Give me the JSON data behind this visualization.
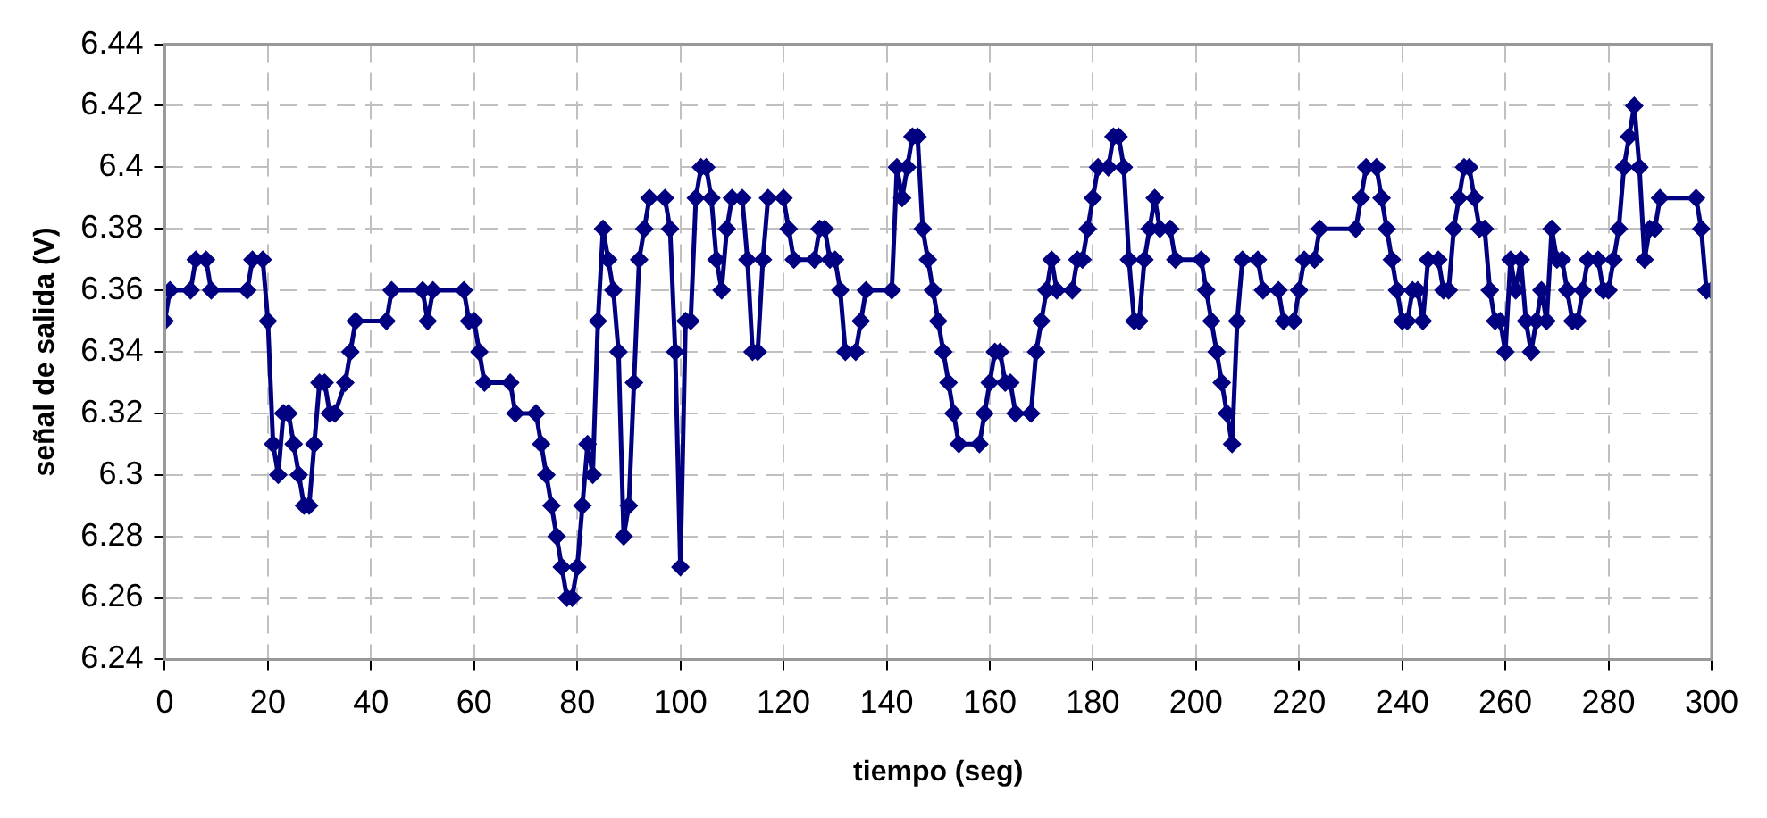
{
  "chart_data": {
    "type": "line",
    "xlabel": "tiempo (seg)",
    "ylabel": "señal de salida (V)",
    "xlim": [
      0,
      300
    ],
    "xticks": [
      0,
      20,
      40,
      60,
      80,
      100,
      120,
      140,
      160,
      180,
      200,
      220,
      240,
      260,
      280,
      300
    ],
    "ylim": [
      6.24,
      6.44
    ],
    "yticks": [
      6.24,
      6.26,
      6.28,
      6.3,
      6.32,
      6.34,
      6.36,
      6.38,
      6.4,
      6.42,
      6.44
    ],
    "grid": true,
    "legend": false,
    "marker": "diamond",
    "line_style": "solid",
    "series": [
      {
        "color": "#000080",
        "x": [
          0,
          1,
          5,
          6,
          8,
          9,
          16,
          17,
          19,
          20,
          21,
          22,
          23,
          24,
          25,
          26,
          27,
          28,
          29,
          30,
          31,
          32,
          33,
          35,
          36,
          37,
          43,
          44,
          50,
          51,
          52,
          58,
          59,
          60,
          61,
          62,
          67,
          68,
          72,
          73,
          74,
          75,
          76,
          77,
          78,
          79,
          80,
          81,
          82,
          83,
          84,
          85,
          86,
          87,
          88,
          89,
          90,
          91,
          92,
          93,
          94,
          97,
          98,
          99,
          100,
          101,
          102,
          103,
          104,
          105,
          106,
          107,
          108,
          109,
          110,
          112,
          113,
          114,
          115,
          116,
          117,
          120,
          121,
          122,
          126,
          127,
          128,
          129,
          130,
          131,
          132,
          134,
          135,
          136,
          141,
          142,
          143,
          144,
          145,
          146,
          147,
          148,
          149,
          150,
          151,
          152,
          153,
          154,
          158,
          159,
          160,
          161,
          162,
          163,
          164,
          165,
          168,
          169,
          170,
          171,
          172,
          173,
          176,
          177,
          178,
          179,
          180,
          181,
          183,
          184,
          185,
          186,
          187,
          188,
          189,
          190,
          191,
          192,
          193,
          195,
          196,
          201,
          202,
          203,
          204,
          205,
          206,
          207,
          208,
          209,
          212,
          213,
          216,
          217,
          219,
          220,
          221,
          223,
          224,
          231,
          232,
          233,
          235,
          236,
          237,
          238,
          239,
          240,
          241,
          242,
          243,
          244,
          245,
          247,
          248,
          249,
          250,
          251,
          252,
          253,
          254,
          255,
          256,
          257,
          258,
          259,
          260,
          261,
          262,
          263,
          264,
          265,
          266,
          267,
          268,
          269,
          270,
          271,
          272,
          273,
          274,
          275,
          276,
          278,
          279,
          280,
          281,
          282,
          283,
          284,
          285,
          286,
          287,
          288,
          289,
          290,
          297,
          298,
          299,
          300
        ],
        "values": [
          6.35,
          6.36,
          6.36,
          6.37,
          6.37,
          6.36,
          6.36,
          6.37,
          6.37,
          6.35,
          6.31,
          6.3,
          6.32,
          6.32,
          6.31,
          6.3,
          6.29,
          6.29,
          6.31,
          6.33,
          6.33,
          6.32,
          6.32,
          6.33,
          6.34,
          6.35,
          6.35,
          6.36,
          6.36,
          6.35,
          6.36,
          6.36,
          6.35,
          6.35,
          6.34,
          6.33,
          6.33,
          6.32,
          6.32,
          6.31,
          6.3,
          6.29,
          6.28,
          6.27,
          6.26,
          6.26,
          6.27,
          6.29,
          6.31,
          6.3,
          6.35,
          6.38,
          6.37,
          6.36,
          6.34,
          6.28,
          6.29,
          6.33,
          6.37,
          6.38,
          6.39,
          6.39,
          6.38,
          6.34,
          6.27,
          6.35,
          6.35,
          6.39,
          6.4,
          6.4,
          6.39,
          6.37,
          6.36,
          6.38,
          6.39,
          6.39,
          6.37,
          6.34,
          6.34,
          6.37,
          6.39,
          6.39,
          6.38,
          6.37,
          6.37,
          6.38,
          6.38,
          6.37,
          6.37,
          6.36,
          6.34,
          6.34,
          6.35,
          6.36,
          6.36,
          6.4,
          6.39,
          6.4,
          6.41,
          6.41,
          6.38,
          6.37,
          6.36,
          6.35,
          6.34,
          6.33,
          6.32,
          6.31,
          6.31,
          6.32,
          6.33,
          6.34,
          6.34,
          6.33,
          6.33,
          6.32,
          6.32,
          6.34,
          6.35,
          6.36,
          6.37,
          6.36,
          6.36,
          6.37,
          6.37,
          6.38,
          6.39,
          6.4,
          6.4,
          6.41,
          6.41,
          6.4,
          6.37,
          6.35,
          6.35,
          6.37,
          6.38,
          6.39,
          6.38,
          6.38,
          6.37,
          6.37,
          6.36,
          6.35,
          6.34,
          6.33,
          6.32,
          6.31,
          6.35,
          6.37,
          6.37,
          6.36,
          6.36,
          6.35,
          6.35,
          6.36,
          6.37,
          6.37,
          6.38,
          6.38,
          6.39,
          6.4,
          6.4,
          6.39,
          6.38,
          6.37,
          6.36,
          6.35,
          6.35,
          6.36,
          6.36,
          6.35,
          6.37,
          6.37,
          6.36,
          6.36,
          6.38,
          6.39,
          6.4,
          6.4,
          6.39,
          6.38,
          6.38,
          6.36,
          6.35,
          6.35,
          6.34,
          6.37,
          6.36,
          6.37,
          6.35,
          6.34,
          6.35,
          6.36,
          6.35,
          6.38,
          6.37,
          6.37,
          6.36,
          6.35,
          6.35,
          6.36,
          6.37,
          6.37,
          6.36,
          6.36,
          6.37,
          6.38,
          6.4,
          6.41,
          6.42,
          6.4,
          6.37,
          6.38,
          6.38,
          6.39,
          6.39,
          6.38,
          6.36,
          6.36
        ]
      }
    ]
  }
}
